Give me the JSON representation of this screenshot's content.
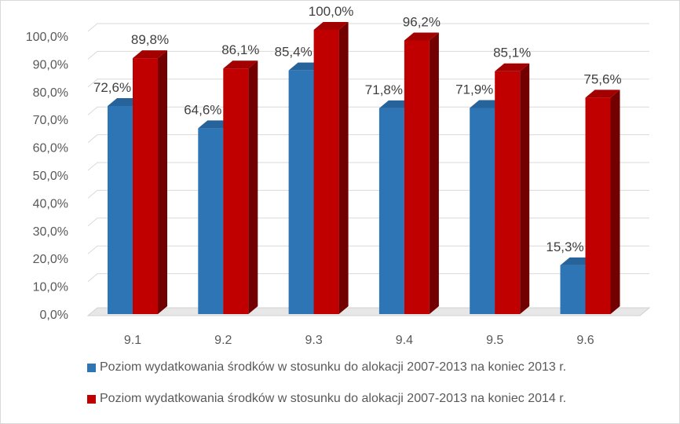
{
  "chart_data": {
    "type": "bar",
    "categories": [
      "9.1",
      "9.2",
      "9.3",
      "9.4",
      "9.5",
      "9.6"
    ],
    "series": [
      {
        "name": "Poziom wydatkowania środków w stosunku do alokacji 2007-2013 na koniec 2013 r.",
        "values": [
          72.6,
          64.6,
          85.4,
          71.8,
          71.9,
          15.3
        ],
        "labels": [
          "72,6%",
          "64,6%",
          "85,4%",
          "71,8%",
          "71,9%",
          "15,3%"
        ],
        "color": "#2e75b6"
      },
      {
        "name": "Poziom wydatkowania środków w stosunku do alokacji 2007-2013 na koniec 2014 r.",
        "values": [
          89.8,
          86.1,
          100.0,
          96.2,
          85.1,
          75.6
        ],
        "labels": [
          "89,8%",
          "86,1%",
          "100,0%",
          "96,2%",
          "85,1%",
          "75,6%"
        ],
        "color": "#c00000"
      }
    ],
    "ylim": [
      0,
      100
    ],
    "yticks": [
      "0,0%",
      "10,0%",
      "20,0%",
      "30,0%",
      "40,0%",
      "50,0%",
      "60,0%",
      "70,0%",
      "80,0%",
      "90,0%",
      "100,0%"
    ],
    "grid": true,
    "style": "3d-clustered-bar",
    "legend_position": "bottom"
  }
}
